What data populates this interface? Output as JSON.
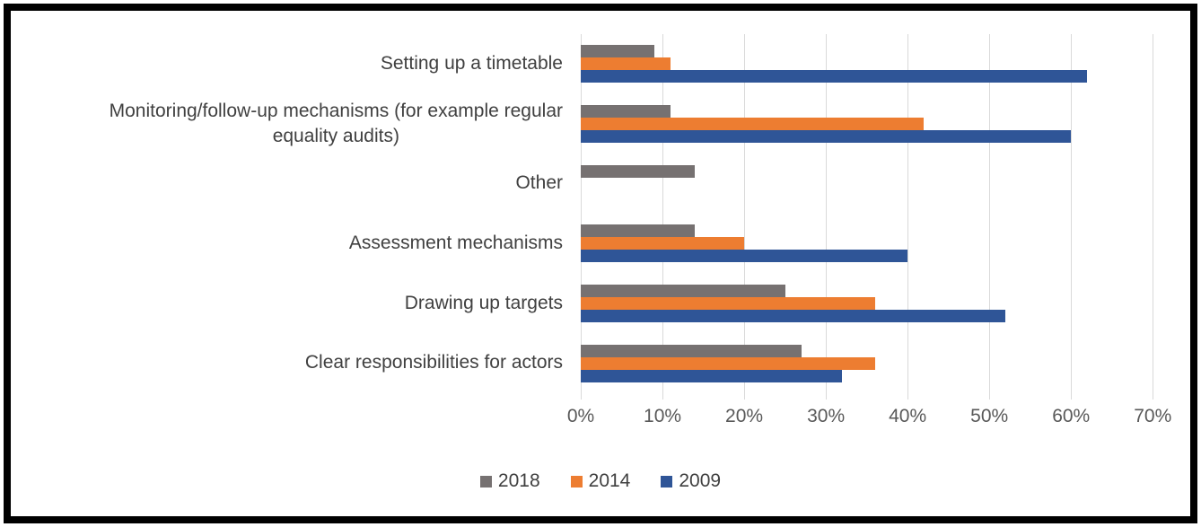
{
  "chart_data": {
    "type": "bar",
    "orientation": "horizontal",
    "title": "",
    "xlabel": "",
    "ylabel": "",
    "categories": [
      "Setting up a timetable",
      "Monitoring/follow-up mechanisms (for example regular\nequality audits)",
      "Other",
      "Assessment mechanisms",
      "Drawing up targets",
      "Clear responsibilities for actors"
    ],
    "series": [
      {
        "name": "2018",
        "color": "#767171",
        "values": [
          9,
          11,
          14,
          14,
          25,
          27
        ]
      },
      {
        "name": "2014",
        "color": "#ED7D31",
        "values": [
          11,
          42,
          0,
          20,
          36,
          36
        ]
      },
      {
        "name": "2009",
        "color": "#2F5597",
        "values": [
          62,
          60,
          0,
          40,
          52,
          32
        ]
      }
    ],
    "value_unit": "%",
    "x_tick_labels": [
      "0%",
      "10%",
      "20%",
      "30%",
      "40%",
      "50%",
      "60%",
      "70%"
    ],
    "x_tick_values": [
      0,
      10,
      20,
      30,
      40,
      50,
      60,
      70
    ],
    "xlim": [
      0,
      70.3
    ],
    "grid": true,
    "legend_position": "bottom"
  },
  "colors": {
    "gridline": "#D9D9D9",
    "tick": "#D9D9D9",
    "axis_text": "#595959",
    "category_text": "#404040",
    "legend_text": "#404040",
    "frame_border": "#000000",
    "background": "#FFFFFF"
  }
}
